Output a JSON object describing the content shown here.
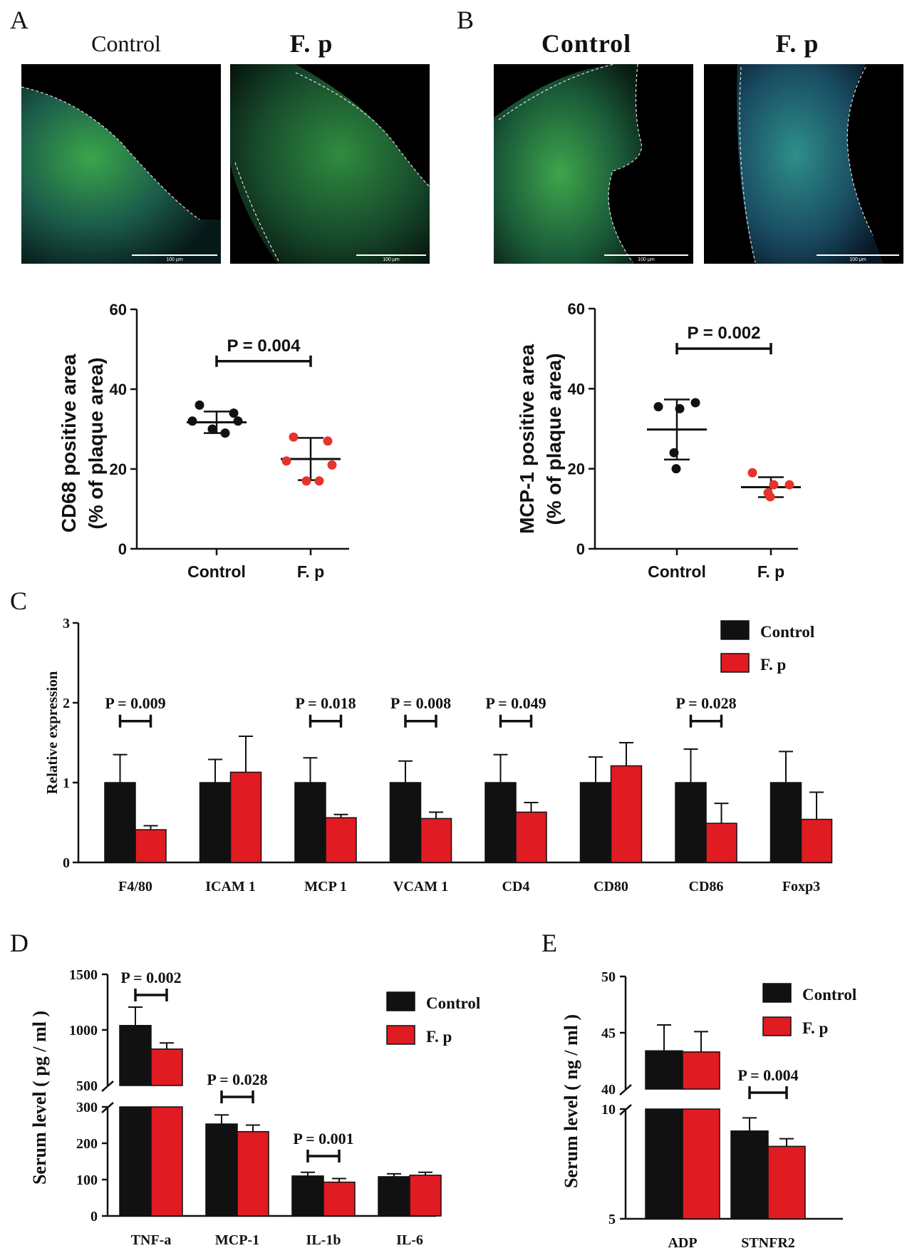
{
  "panels": {
    "A": {
      "letter": "A",
      "image_titles": [
        "Control",
        "F. p"
      ],
      "scale_bar_label": "100 μm"
    },
    "B": {
      "letter": "B",
      "image_titles": [
        "Control",
        "F. p"
      ],
      "scale_bar_label": "100 μm"
    },
    "C": {
      "letter": "C"
    },
    "D": {
      "letter": "D"
    },
    "E": {
      "letter": "E"
    }
  },
  "colors": {
    "control": "#111111",
    "fp": "#e01b22",
    "fp_dot": "#e5342b"
  },
  "chart_data": [
    {
      "id": "A",
      "type": "scatter",
      "ylabel_line1": "CD68 positive area",
      "ylabel_line2": "(% of plaque area)",
      "categories": [
        "Control",
        "F. p"
      ],
      "ylim": [
        0,
        60
      ],
      "yticks": [
        "0",
        "20",
        "40",
        "60"
      ],
      "series": [
        {
          "name": "Control",
          "points": [
            36,
            34,
            32,
            32,
            30,
            29
          ],
          "mean": 31.7,
          "sd": 2.7
        },
        {
          "name": "F. p",
          "points": [
            28,
            27,
            22,
            21,
            17,
            17
          ],
          "mean": 22.5,
          "sd": 5.3
        }
      ],
      "annotation": "P = 0.004"
    },
    {
      "id": "B",
      "type": "scatter",
      "ylabel_line1": "MCP-1 positive area",
      "ylabel_line2": "(% of plaque area)",
      "categories": [
        "Control",
        "F. p"
      ],
      "ylim": [
        0,
        60
      ],
      "yticks": [
        "0",
        "20",
        "40",
        "60"
      ],
      "series": [
        {
          "name": "Control",
          "points": [
            35.5,
            36.5,
            35,
            24,
            20
          ],
          "mean": 29.8,
          "sd": 7.5
        },
        {
          "name": "F. p",
          "points": [
            19,
            16,
            16,
            14,
            13
          ],
          "mean": 15.4,
          "sd": 2.5
        }
      ],
      "annotation": "P = 0.002"
    },
    {
      "id": "C",
      "type": "bar",
      "ylabel": "Relative expression",
      "categories": [
        "F4/80",
        "ICAM 1",
        "MCP 1",
        "VCAM 1",
        "CD4",
        "CD80",
        "CD86",
        "Foxp3"
      ],
      "ylim": [
        0,
        3
      ],
      "yticks": [
        "0",
        "1",
        "2",
        "3"
      ],
      "legend": [
        "Control",
        "F. p"
      ],
      "series": [
        {
          "name": "Control",
          "values": [
            1,
            1,
            1,
            1,
            1,
            1,
            1,
            1
          ],
          "errors": [
            0.35,
            0.29,
            0.31,
            0.27,
            0.35,
            0.32,
            0.42,
            0.39
          ]
        },
        {
          "name": "F. p",
          "values": [
            0.41,
            1.13,
            0.56,
            0.55,
            0.63,
            1.21,
            0.49,
            0.54
          ],
          "errors": [
            0.05,
            0.45,
            0.04,
            0.08,
            0.12,
            0.29,
            0.25,
            0.34
          ]
        }
      ],
      "annotations": [
        {
          "category": "F4/80",
          "text": "P = 0.009"
        },
        {
          "category": "MCP 1",
          "text": "P = 0.018"
        },
        {
          "category": "VCAM 1",
          "text": "P = 0.008"
        },
        {
          "category": "CD4",
          "text": "P = 0.049"
        },
        {
          "category": "CD86",
          "text": "P = 0.028"
        }
      ]
    },
    {
      "id": "D",
      "type": "bar",
      "ylabel": "Serum level ( pg / ml )",
      "categories": [
        "TNF-a",
        "MCP-1",
        "IL-1b",
        "IL-6"
      ],
      "broken_axis": {
        "lower": [
          0,
          300
        ],
        "upper": [
          500,
          1500
        ]
      },
      "yticks_lower": [
        "0",
        "100",
        "200",
        "300"
      ],
      "yticks_upper": [
        "500",
        "1000",
        "1500"
      ],
      "legend": [
        "Control",
        "F. p"
      ],
      "series": [
        {
          "name": "Control",
          "values": [
            1040,
            253,
            110,
            108
          ],
          "errors": [
            165,
            25,
            10,
            8
          ]
        },
        {
          "name": "F. p",
          "values": [
            828,
            232,
            93,
            112
          ],
          "errors": [
            55,
            18,
            10,
            8
          ]
        }
      ],
      "annotations": [
        {
          "category": "TNF-a",
          "text": "P = 0.002"
        },
        {
          "category": "MCP-1",
          "text": "P = 0.028"
        },
        {
          "category": "IL-1b",
          "text": "P = 0.001"
        }
      ]
    },
    {
      "id": "E",
      "type": "bar",
      "ylabel": "Serum level ( ng / ml )",
      "categories": [
        "ADP",
        "STNFR2"
      ],
      "broken_axis": {
        "lower": [
          5,
          10
        ],
        "upper": [
          40,
          50
        ]
      },
      "yticks_lower": [
        "5",
        "10"
      ],
      "yticks_upper": [
        "40",
        "45",
        "50"
      ],
      "legend": [
        "Control",
        "F. p"
      ],
      "series": [
        {
          "name": "Control",
          "values": [
            43.4,
            9.0
          ],
          "errors": [
            2.3,
            0.6
          ]
        },
        {
          "name": "F. p",
          "values": [
            43.3,
            8.3
          ],
          "errors": [
            1.8,
            0.35
          ]
        }
      ],
      "annotations": [
        {
          "category": "STNFR2",
          "text": "P = 0.004"
        }
      ]
    }
  ]
}
